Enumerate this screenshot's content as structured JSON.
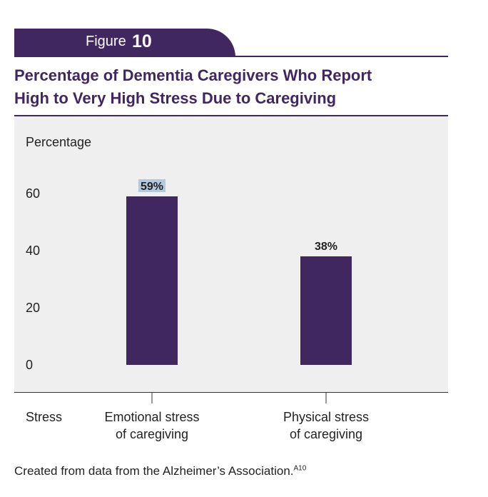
{
  "figure": {
    "label": "Figure",
    "number": "10"
  },
  "title_lines": [
    "Percentage of Dementia Caregivers Who Report",
    "High to Very High Stress Due to Caregiving"
  ],
  "footnote": {
    "text": "Created from data from the Alzheimer’s Association.",
    "ref": "A10"
  },
  "colors": {
    "bar": "#40275f",
    "plot_background": "#efefef",
    "label_highlight": "#b3c9dc"
  },
  "chart_data": {
    "type": "bar",
    "title": "Percentage of Dementia Caregivers Who Report High to Very High Stress Due to Caregiving",
    "ylabel": "Percentage",
    "xlabel": "Stress",
    "categories": [
      "Emotional stress of caregiving",
      "Physical stress of caregiving"
    ],
    "category_label_lines": [
      [
        "Emotional stress",
        "of caregiving"
      ],
      [
        "Physical stress",
        "of caregiving"
      ]
    ],
    "values": [
      59,
      38
    ],
    "value_labels": [
      "59%",
      "38%"
    ],
    "yticks": [
      0,
      20,
      40,
      60
    ],
    "ylim": [
      0,
      60
    ],
    "grid": false,
    "legend": "none"
  }
}
